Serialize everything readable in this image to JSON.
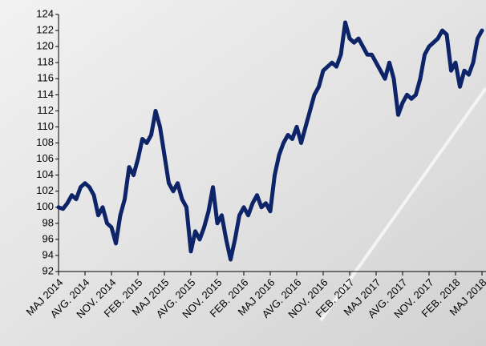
{
  "chart_data": {
    "type": "line",
    "categories": [
      "MAJ 2014",
      null,
      null,
      null,
      null,
      null,
      "AVG. 2014",
      null,
      null,
      null,
      null,
      null,
      "NOV. 2014",
      null,
      null,
      null,
      null,
      null,
      "FEB. 2015",
      null,
      null,
      null,
      null,
      null,
      "MAJ 2015",
      null,
      null,
      null,
      null,
      null,
      "AVG. 2015",
      null,
      null,
      null,
      null,
      null,
      "NOV. 2015",
      null,
      null,
      null,
      null,
      null,
      "FEB. 2016",
      null,
      null,
      null,
      null,
      null,
      "MAJ 2016",
      null,
      null,
      null,
      null,
      null,
      "AVG. 2016",
      null,
      null,
      null,
      null,
      null,
      "NOV. 2016",
      null,
      null,
      null,
      null,
      null,
      "FEB. 2017",
      null,
      null,
      null,
      null,
      null,
      "MAJ 2017",
      null,
      null,
      null,
      null,
      null,
      "AVG. 2017",
      null,
      null,
      null,
      null,
      null,
      "NOV. 2017",
      null,
      null,
      null,
      null,
      null,
      "FEB. 2018",
      null,
      null,
      null,
      null,
      null,
      "MAJ 2018"
    ],
    "values": [
      100,
      99.8,
      100.5,
      101.5,
      101,
      102.5,
      103,
      102.5,
      101.5,
      99,
      100,
      98,
      97.5,
      95.5,
      99,
      101,
      105,
      104,
      106,
      108.5,
      108,
      109,
      112,
      110,
      106.5,
      103,
      102,
      103,
      101,
      100,
      94.5,
      97,
      96,
      97.5,
      99.5,
      102.5,
      98,
      99,
      96,
      93.5,
      96,
      99,
      100,
      99,
      100.5,
      101.5,
      100,
      100.5,
      99.5,
      104,
      106.5,
      108,
      109,
      108.5,
      110,
      108,
      110,
      112,
      114,
      115,
      117,
      117.5,
      118,
      117.5,
      119,
      123,
      121,
      120.5,
      121,
      120,
      119,
      119,
      118,
      117,
      116,
      118,
      116,
      111.5,
      113,
      114,
      113.5,
      114,
      116,
      119,
      120,
      120.5,
      121,
      122,
      121.5,
      117,
      118,
      115,
      117,
      116.5,
      118,
      121,
      122
    ],
    "color": "#0d2468",
    "ylim": [
      92,
      124
    ],
    "yticks": [
      92,
      94,
      96,
      98,
      100,
      102,
      104,
      106,
      108,
      110,
      112,
      114,
      116,
      118,
      120,
      122,
      124
    ],
    "grid": false
  }
}
